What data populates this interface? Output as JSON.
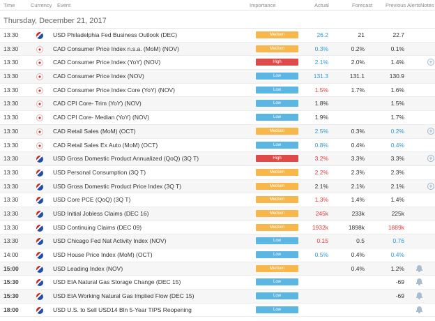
{
  "header": {
    "time": "Time",
    "currency": "Currency",
    "event": "Event",
    "importance": "Importance",
    "actual": "Actual",
    "forecast": "Forecast",
    "previous": "Previous",
    "alerts": "Alerts",
    "notes": "Notes"
  },
  "date_label": "Thursday, December 21, 2017",
  "colors": {
    "medium": "#f7b74a",
    "high": "#de4a4a",
    "low": "#5bb6e3",
    "better": "#2f9bd6",
    "worse": "#e23b3b"
  },
  "rows": [
    {
      "time": "13:30",
      "currency": "usd",
      "event": "USD Philadelphia Fed Business Outlook (DEC)",
      "importance": "Medium",
      "actual": "26.2",
      "actual_color": "blue",
      "forecast": "21",
      "previous": "22.7",
      "previous_color": "plain",
      "icon": ""
    },
    {
      "time": "13:30",
      "currency": "cad",
      "event": "CAD Consumer Price Index n.s.a. (MoM) (NOV)",
      "importance": "Medium",
      "actual": "0.3%",
      "actual_color": "blue",
      "forecast": "0.2%",
      "previous": "0.1%",
      "previous_color": "plain",
      "icon": ""
    },
    {
      "time": "13:30",
      "currency": "cad",
      "event": "CAD Consumer Price Index (YoY) (NOV)",
      "importance": "High",
      "actual": "2.1%",
      "actual_color": "blue",
      "forecast": "2.0%",
      "previous": "1.4%",
      "previous_color": "plain",
      "icon": "plus-icon"
    },
    {
      "time": "13:30",
      "currency": "cad",
      "event": "CAD Consumer Price Index (NOV)",
      "importance": "Low",
      "actual": "131.3",
      "actual_color": "blue",
      "forecast": "131.1",
      "previous": "130.9",
      "previous_color": "plain",
      "icon": ""
    },
    {
      "time": "13:30",
      "currency": "cad",
      "event": "CAD Consumer Price Index Core (YoY) (NOV)",
      "importance": "Low",
      "actual": "1.5%",
      "actual_color": "red",
      "forecast": "1.7%",
      "previous": "1.6%",
      "previous_color": "plain",
      "icon": ""
    },
    {
      "time": "13:30",
      "currency": "cad",
      "event": "CAD CPI Core- Trim (YoY) (NOV)",
      "importance": "Low",
      "actual": "1.8%",
      "actual_color": "plain",
      "forecast": "",
      "previous": "1.5%",
      "previous_color": "plain",
      "icon": ""
    },
    {
      "time": "13:30",
      "currency": "cad",
      "event": "CAD CPI Core- Median (YoY) (NOV)",
      "importance": "Low",
      "actual": "1.9%",
      "actual_color": "plain",
      "forecast": "",
      "previous": "1.7%",
      "previous_color": "plain",
      "icon": ""
    },
    {
      "time": "13:30",
      "currency": "cad",
      "event": "CAD Retail Sales (MoM) (OCT)",
      "importance": "Medium",
      "actual": "2.5%",
      "actual_color": "blue",
      "forecast": "0.3%",
      "previous": "0.2%",
      "previous_color": "blue",
      "icon": "plus-icon"
    },
    {
      "time": "13:30",
      "currency": "cad",
      "event": "CAD Retail Sales Ex Auto (MoM) (OCT)",
      "importance": "Low",
      "actual": "0.8%",
      "actual_color": "blue",
      "forecast": "0.4%",
      "previous": "0.4%",
      "previous_color": "blue",
      "icon": ""
    },
    {
      "time": "13:30",
      "currency": "usd",
      "event": "USD Gross Domestic Product Annualized (QoQ) (3Q T)",
      "importance": "High",
      "actual": "3.2%",
      "actual_color": "red",
      "forecast": "3.3%",
      "previous": "3.3%",
      "previous_color": "plain",
      "icon": "plus-icon"
    },
    {
      "time": "13:30",
      "currency": "usd",
      "event": "USD Personal Consumption (3Q T)",
      "importance": "Medium",
      "actual": "2.2%",
      "actual_color": "red",
      "forecast": "2.3%",
      "previous": "2.3%",
      "previous_color": "plain",
      "icon": ""
    },
    {
      "time": "13:30",
      "currency": "usd",
      "event": "USD Gross Domestic Product Price Index (3Q T)",
      "importance": "Medium",
      "actual": "2.1%",
      "actual_color": "plain",
      "forecast": "2.1%",
      "previous": "2.1%",
      "previous_color": "plain",
      "icon": "plus-icon"
    },
    {
      "time": "13:30",
      "currency": "usd",
      "event": "USD Core PCE (QoQ) (3Q T)",
      "importance": "Medium",
      "actual": "1.3%",
      "actual_color": "red",
      "forecast": "1.4%",
      "previous": "1.4%",
      "previous_color": "plain",
      "icon": ""
    },
    {
      "time": "13:30",
      "currency": "usd",
      "event": "USD Initial Jobless Claims (DEC 16)",
      "importance": "Medium",
      "actual": "245k",
      "actual_color": "red",
      "forecast": "233k",
      "previous": "225k",
      "previous_color": "plain",
      "icon": ""
    },
    {
      "time": "13:30",
      "currency": "usd",
      "event": "USD Continuing Claims (DEC 09)",
      "importance": "Medium",
      "actual": "1932k",
      "actual_color": "red",
      "forecast": "1898k",
      "previous": "1889k",
      "previous_color": "red",
      "icon": ""
    },
    {
      "time": "13:30",
      "currency": "usd",
      "event": "USD Chicago Fed Nat Activity Index (NOV)",
      "importance": "Low",
      "actual": "0.15",
      "actual_color": "red",
      "forecast": "0.5",
      "previous": "0.76",
      "previous_color": "blue",
      "icon": ""
    },
    {
      "time": "14:00",
      "currency": "usd",
      "event": "USD House Price Index (MoM) (OCT)",
      "importance": "Low",
      "actual": "0.5%",
      "actual_color": "blue",
      "forecast": "0.4%",
      "previous": "0.4%",
      "previous_color": "blue",
      "icon": ""
    },
    {
      "time": "15:00",
      "currency": "usd",
      "event": "USD Leading Index (NOV)",
      "importance": "Medium",
      "actual": "",
      "actual_color": "plain",
      "forecast": "0.4%",
      "previous": "1.2%",
      "previous_color": "plain",
      "icon": "bell-icon"
    },
    {
      "time": "15:30",
      "currency": "usd",
      "event": "USD EIA Natural Gas Storage Change (DEC 15)",
      "importance": "Low",
      "actual": "",
      "actual_color": "plain",
      "forecast": "",
      "previous": "-69",
      "previous_color": "plain",
      "icon": "bell-icon"
    },
    {
      "time": "15:30",
      "currency": "usd",
      "event": "USD EIA Working Natural Gas Implied Flow (DEC 15)",
      "importance": "Low",
      "actual": "",
      "actual_color": "plain",
      "forecast": "",
      "previous": "-69",
      "previous_color": "plain",
      "icon": "bell-icon"
    },
    {
      "time": "18:00",
      "currency": "usd",
      "event": "USD U.S. to Sell USD14 Bln 5-Year TIPS Reopening",
      "importance": "Low",
      "actual": "",
      "actual_color": "plain",
      "forecast": "",
      "previous": "",
      "previous_color": "plain",
      "icon": "bell-icon"
    }
  ]
}
